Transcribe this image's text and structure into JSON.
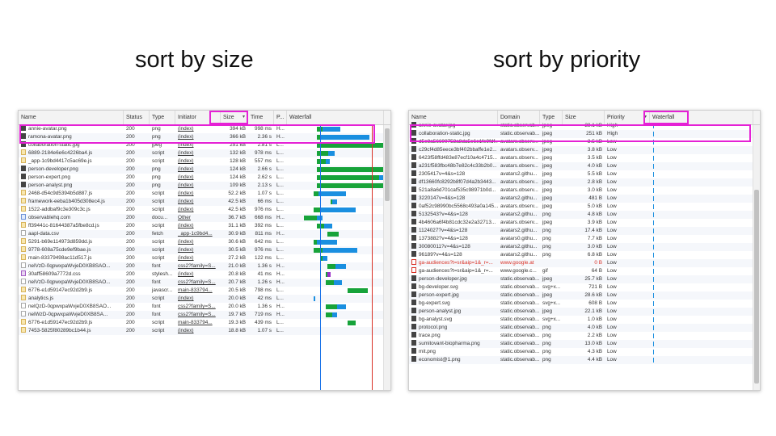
{
  "left_title": "sort by size",
  "right_title": "sort by priority",
  "highlight_color": "#e521d5",
  "waterfall_colors": {
    "waiting": "#17a33a",
    "download": "#1a8fe0",
    "queued": "#cfcfcf",
    "css": "#9b30c8"
  },
  "left_panel": {
    "columns": [
      "Name",
      "Status",
      "Type",
      "Initiator",
      "Size",
      "Time",
      "P...",
      "Waterfall"
    ],
    "sorted_column": "Size",
    "rows": [
      {
        "name": "annie-avatar.png",
        "status": "200",
        "type": "png",
        "initiator": "(index)",
        "size": "394 kB",
        "time": "998 ms",
        "p": "H...",
        "icon": "image-file-icon",
        "wf": [
          0.04,
          0.06,
          0.22
        ]
      },
      {
        "name": "ramona-avatar.png",
        "status": "200",
        "type": "png",
        "initiator": "(index)",
        "size": "366 kB",
        "time": "2.36 s",
        "p": "H...",
        "icon": "image-file-icon",
        "wf": [
          0.04,
          0.04,
          0.58
        ]
      },
      {
        "name": "collaboration-static.jpg",
        "status": "200",
        "type": "jpeg",
        "initiator": "(index)",
        "size": "251 kB",
        "time": "2.81 s",
        "p": "L...",
        "icon": "image-file-icon",
        "wf": [
          0.04,
          0.88,
          0.0
        ]
      },
      {
        "name": "6889-2184e6e6c4226ba4.js",
        "status": "200",
        "type": "script",
        "initiator": "(index)",
        "size": "132 kB",
        "time": "978 ms",
        "p": "L...",
        "icon": "script-file-icon",
        "wf": [
          0.04,
          0.13,
          0.08
        ]
      },
      {
        "name": "_app-1c9bd4417c5ac69e.js",
        "status": "200",
        "type": "script",
        "initiator": "(index)",
        "size": "128 kB",
        "time": "557 ms",
        "p": "L...",
        "icon": "script-file-icon",
        "wf": [
          0.04,
          0.1,
          0.05
        ]
      },
      {
        "name": "person-developer.png",
        "status": "200",
        "type": "png",
        "initiator": "(index)",
        "size": "124 kB",
        "time": "2.66 s",
        "p": "L...",
        "icon": "image-file-icon",
        "wf": [
          0.04,
          0.82,
          0.0
        ]
      },
      {
        "name": "person-expert.png",
        "status": "200",
        "type": "png",
        "initiator": "(index)",
        "size": "124 kB",
        "time": "2.62 s",
        "p": "L...",
        "icon": "image-file-icon",
        "wf": [
          0.04,
          0.74,
          0.1
        ]
      },
      {
        "name": "person-analyst.png",
        "status": "200",
        "type": "png",
        "initiator": "(index)",
        "size": "109 kB",
        "time": "2.13 s",
        "p": "L...",
        "icon": "image-file-icon",
        "wf": [
          0.04,
          0.86,
          0.0
        ]
      },
      {
        "name": "2468-d54c9d5394b5d887.js",
        "status": "200",
        "type": "script",
        "initiator": "(index)",
        "size": "52.2 kB",
        "time": "1.07 s",
        "p": "L...",
        "icon": "script-file-icon",
        "wf": [
          0.0,
          0.06,
          0.32
        ]
      },
      {
        "name": "framework-eeba1b405d308ec4.js",
        "status": "200",
        "type": "script",
        "initiator": "(index)",
        "size": "42.5 kB",
        "time": "66 ms",
        "p": "L...",
        "icon": "script-file-icon",
        "wf": [
          0.2,
          0.02,
          0.06
        ]
      },
      {
        "name": "1522-addbaf9c3e309c3c.js",
        "status": "200",
        "type": "script",
        "initiator": "(index)",
        "size": "42.5 kB",
        "time": "976 ms",
        "p": "L...",
        "icon": "script-file-icon",
        "wf": [
          0.0,
          0.08,
          0.42
        ]
      },
      {
        "name": "observablehq.com",
        "status": "200",
        "type": "docu...",
        "initiator": "Other",
        "size": "36.7 kB",
        "time": "668 ms",
        "p": "H...",
        "icon": "document-file-icon",
        "wf": [
          -0.12,
          0.16,
          0.06
        ]
      },
      {
        "name": "ff39441c-81644387a5fbe8cd.js",
        "status": "200",
        "type": "script",
        "initiator": "(index)",
        "size": "31.1 kB",
        "time": "392 ms",
        "p": "L...",
        "icon": "script-file-icon",
        "wf": [
          0.04,
          0.08,
          0.1
        ]
      },
      {
        "name": "aapl-data.csv",
        "status": "200",
        "type": "fetch",
        "initiator": "_app-1c9bd4...",
        "size": "30.9 kB",
        "time": "811 ms",
        "p": "H...",
        "icon": "fetch-file-icon",
        "wf": [
          0.16,
          0.14,
          0.0
        ]
      },
      {
        "name": "5291-b69e114973d859dd.js",
        "status": "200",
        "type": "script",
        "initiator": "(index)",
        "size": "30.6 kB",
        "time": "642 ms",
        "p": "L...",
        "icon": "script-file-icon",
        "wf": [
          0.0,
          0.04,
          0.24
        ]
      },
      {
        "name": "9778-608a75cde9ef9bae.js",
        "status": "200",
        "type": "script",
        "initiator": "(index)",
        "size": "30.5 kB",
        "time": "976 ms",
        "p": "L...",
        "icon": "script-file-icon",
        "wf": [
          0.0,
          0.1,
          0.42
        ]
      },
      {
        "name": "main-83379498ac11d517.js",
        "status": "200",
        "type": "script",
        "initiator": "(index)",
        "size": "27.2 kB",
        "time": "122 ms",
        "p": "L...",
        "icon": "script-file-icon",
        "wf": [
          0.08,
          0.02,
          0.06
        ]
      },
      {
        "name": "nelVzD-0qpwxpaWvjeD0XB8SAO...",
        "status": "200",
        "type": "font",
        "initiator": "css2?family=S...",
        "size": "21.0 kB",
        "time": "1.36 s",
        "p": "H...",
        "icon": "font-file-icon",
        "wf": [
          0.16,
          0.1,
          0.12
        ]
      },
      {
        "name": "30aff58609a7772d.css",
        "status": "200",
        "type": "stylesh...",
        "initiator": "(index)",
        "size": "20.8 kB",
        "time": "41 ms",
        "p": "H...",
        "icon": "css-file-icon",
        "wf": [
          0.14,
          0.02,
          0.04
        ]
      },
      {
        "name": "nelVzD-0qpwxpaWvjeD0XB8SAO...",
        "status": "200",
        "type": "font",
        "initiator": "css2?family=S...",
        "size": "20.7 kB",
        "time": "1.26 s",
        "p": "H...",
        "icon": "font-file-icon",
        "wf": [
          0.14,
          0.1,
          0.1
        ]
      },
      {
        "name": "6776-e1d59147ec92d2b9.js",
        "status": "200",
        "type": "javascr...",
        "initiator": "main-833794...",
        "size": "20.5 kB",
        "time": "798 ms",
        "p": "L...",
        "icon": "script-file-icon",
        "wf": [
          0.4,
          0.24,
          0.0
        ]
      },
      {
        "name": "analytics.js",
        "status": "200",
        "type": "script",
        "initiator": "(index)",
        "size": "20.0 kB",
        "time": "42 ms",
        "p": "L...",
        "icon": "script-file-icon",
        "wf": [
          0.0,
          0.0,
          0.02
        ]
      },
      {
        "name": "nelQzD-0qpwxpaWvjeD0XB8SAO...",
        "status": "200",
        "type": "font",
        "initiator": "css2?family=S...",
        "size": "20.0 kB",
        "time": "1.36 s",
        "p": "H...",
        "icon": "font-file-icon",
        "wf": [
          0.14,
          0.14,
          0.1
        ]
      },
      {
        "name": "nelWzD-0qpwxpaWvjeD0XB8SA...",
        "status": "200",
        "type": "font",
        "initiator": "css2?family=S...",
        "size": "19.7 kB",
        "time": "719 ms",
        "p": "H...",
        "icon": "font-file-icon",
        "wf": [
          0.14,
          0.08,
          0.06
        ]
      },
      {
        "name": "6776-e1d59147ec92d2b9.js",
        "status": "200",
        "type": "script",
        "initiator": "main-833794...",
        "size": "19.3 kB",
        "time": "439 ms",
        "p": "L...",
        "icon": "script-file-icon",
        "wf": [
          0.4,
          0.1,
          0.0
        ]
      },
      {
        "name": "7453-5825f80289bc1b44.js",
        "status": "200",
        "type": "script",
        "initiator": "(index)",
        "size": "18.8 kB",
        "time": "1.07 s",
        "p": "L...",
        "icon": "script-file-icon",
        "wf": [
          0.0,
          0.0,
          0.0
        ]
      }
    ]
  },
  "right_panel": {
    "columns": [
      "Name",
      "Domain",
      "Type",
      "Size",
      "Priority",
      "Waterfall"
    ],
    "sorted_column": "Priority",
    "rows": [
      {
        "name": "annie-avatar.jpg",
        "domain": "static.observab...",
        "type": "jpeg",
        "size": "28.1 kB",
        "priority": "High",
        "icon": "image-file-icon",
        "partial": true
      },
      {
        "name": "collaboration-static.jpg",
        "domain": "static.observab...",
        "type": "jpeg",
        "size": "251 kB",
        "priority": "High",
        "icon": "image-file-icon"
      },
      {
        "name": "d5e8a56600753a8da5e6e1fe9fdf...",
        "domain": "avatars.observ...",
        "type": "jpeg",
        "size": "3.5 kB",
        "priority": "Low",
        "icon": "image-file-icon",
        "partial": true
      },
      {
        "name": "c29cf4d85eece3bf402bbaffe1e2...",
        "domain": "avatars.observ...",
        "type": "jpeg",
        "size": "3.8 kB",
        "priority": "Low",
        "icon": "image-file-icon"
      },
      {
        "name": "6423f58ffd483e87ecf10a4c4715...",
        "domain": "avatars.observ...",
        "type": "jpeg",
        "size": "3.5 kB",
        "priority": "Low",
        "icon": "image-file-icon"
      },
      {
        "name": "a231f583fbc48b7e82c4c33b2b0...",
        "domain": "avatars.observ...",
        "type": "jpeg",
        "size": "4.0 kB",
        "priority": "Low",
        "icon": "image-file-icon"
      },
      {
        "name": "2305417v=4&s=128",
        "domain": "avatars2.githu...",
        "type": "jpeg",
        "size": "5.5 kB",
        "priority": "Low",
        "icon": "image-file-icon"
      },
      {
        "name": "df13660fc8292b8f07d4a2b3443...",
        "domain": "avatars.observ...",
        "type": "jpeg",
        "size": "2.8 kB",
        "priority": "Low",
        "icon": "image-file-icon"
      },
      {
        "name": "521a8a6d701caf535c98971b0d...",
        "domain": "avatars.observ...",
        "type": "jpeg",
        "size": "3.0 kB",
        "priority": "Low",
        "icon": "image-file-icon"
      },
      {
        "name": "3220147v=4&s=128",
        "domain": "avatars2.githu...",
        "type": "jpeg",
        "size": "481 B",
        "priority": "Low",
        "icon": "image-file-icon"
      },
      {
        "name": "0af52c98990bc5568c493a0a145...",
        "domain": "avatars.observ...",
        "type": "jpeg",
        "size": "5.0 kB",
        "priority": "Low",
        "icon": "image-file-icon"
      },
      {
        "name": "5132543?v=4&s=128",
        "domain": "avatars2.githu...",
        "type": "png",
        "size": "4.8 kB",
        "priority": "Low",
        "icon": "image-file-icon"
      },
      {
        "name": "4b4606a6f4b81cdc32e2a32713...",
        "domain": "avatars.observ...",
        "type": "jpeg",
        "size": "3.9 kB",
        "priority": "Low",
        "icon": "image-file-icon"
      },
      {
        "name": "1124027?v=4&s=128",
        "domain": "avatars2.githu...",
        "type": "png",
        "size": "17.4 kB",
        "priority": "Low",
        "icon": "image-file-icon"
      },
      {
        "name": "1373882?v=4&s=128",
        "domain": "avatars0.githu...",
        "type": "png",
        "size": "7.7 kB",
        "priority": "Low",
        "icon": "image-file-icon"
      },
      {
        "name": "30080011?v=4&s=128",
        "domain": "avatars2.githu...",
        "type": "png",
        "size": "3.0 kB",
        "priority": "Low",
        "icon": "image-file-icon"
      },
      {
        "name": "96189?v=4&s=128",
        "domain": "avatars2.githu...",
        "type": "png",
        "size": "6.8 kB",
        "priority": "Low",
        "icon": "image-file-icon"
      },
      {
        "name": "ga-audiences?t=sr&aip=1&_r=...",
        "domain": "www.google.at",
        "type": "",
        "size": "0 B",
        "priority": "Low",
        "icon": "gif-file-icon",
        "red": true
      },
      {
        "name": "ga-audiences?t=sr&aip=1&_r=...",
        "domain": "www.google.c...",
        "type": "gif",
        "size": "64 B",
        "priority": "Low",
        "icon": "gif-file-icon"
      },
      {
        "name": "person-developer.jpg",
        "domain": "static.observab...",
        "type": "jpeg",
        "size": "25.7 kB",
        "priority": "Low",
        "icon": "image-file-icon"
      },
      {
        "name": "bg-developer.svg",
        "domain": "static.observab...",
        "type": "svg+x...",
        "size": "721 B",
        "priority": "Low",
        "icon": "image-file-icon"
      },
      {
        "name": "person-expert.jpg",
        "domain": "static.observab...",
        "type": "jpeg",
        "size": "28.6 kB",
        "priority": "Low",
        "icon": "image-file-icon"
      },
      {
        "name": "bg-expert.svg",
        "domain": "static.observab...",
        "type": "svg+x...",
        "size": "608 B",
        "priority": "Low",
        "icon": "image-file-icon"
      },
      {
        "name": "person-analyst.jpg",
        "domain": "static.observab...",
        "type": "jpeg",
        "size": "22.1 kB",
        "priority": "Low",
        "icon": "image-file-icon"
      },
      {
        "name": "bg-analyst.svg",
        "domain": "static.observab...",
        "type": "svg+x...",
        "size": "1.0 kB",
        "priority": "Low",
        "icon": "image-file-icon"
      },
      {
        "name": "protocol.png",
        "domain": "static.observab...",
        "type": "png",
        "size": "4.0 kB",
        "priority": "Low",
        "icon": "image-file-icon"
      },
      {
        "name": "trace.png",
        "domain": "static.observab...",
        "type": "png",
        "size": "2.2 kB",
        "priority": "Low",
        "icon": "image-file-icon"
      },
      {
        "name": "sumitovant-biopharma.png",
        "domain": "static.observab...",
        "type": "png",
        "size": "13.0 kB",
        "priority": "Low",
        "icon": "image-file-icon"
      },
      {
        "name": "mit.png",
        "domain": "static.observab...",
        "type": "png",
        "size": "4.3 kB",
        "priority": "Low",
        "icon": "image-file-icon"
      },
      {
        "name": "economist@1.png",
        "domain": "static.observab...",
        "type": "png",
        "size": "4.4 kB",
        "priority": "Low",
        "icon": "image-file-icon"
      }
    ]
  }
}
